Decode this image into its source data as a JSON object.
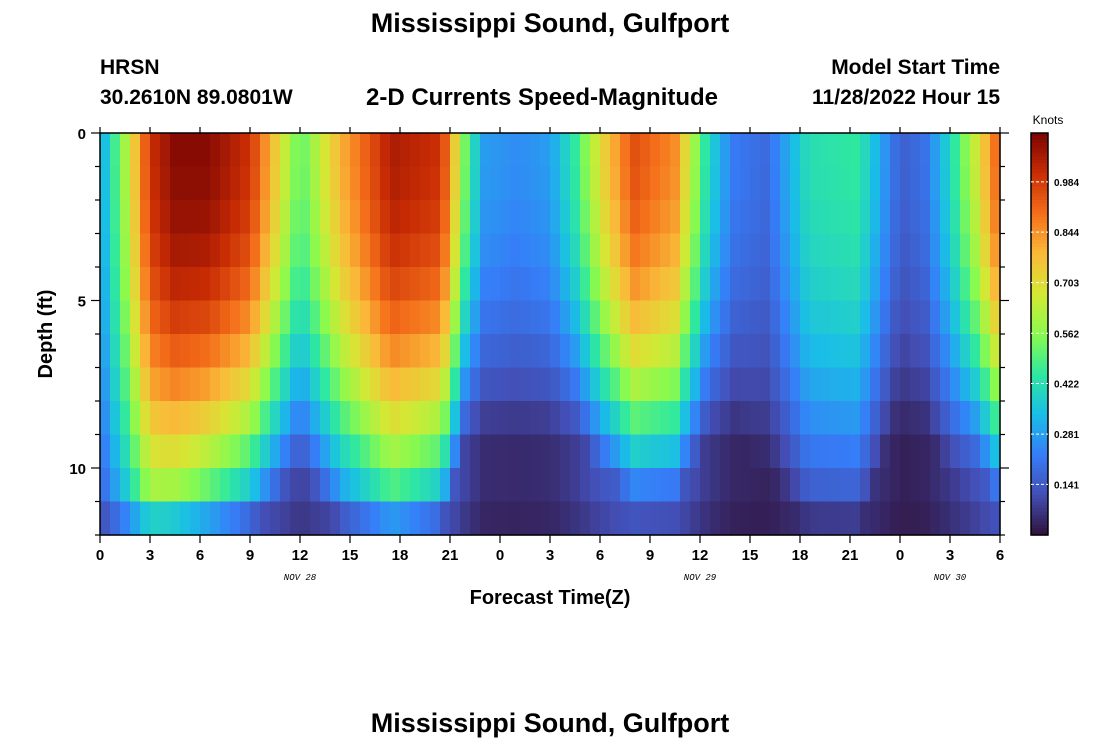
{
  "header": {
    "title": "Mississippi Sound, Gulfport",
    "station_id": "HRSN",
    "station_coords": "30.2610N  89.0801W",
    "plot_title": "2-D Currents Speed-Magnitude",
    "model_start_label": "Model Start Time",
    "model_start_value": "11/28/2022 Hour 15"
  },
  "footer": {
    "title": "Mississippi Sound, Gulfport"
  },
  "chart_data": {
    "type": "heatmap",
    "title": "2-D Currents Speed-Magnitude",
    "xlabel": "Forecast Time(Z)",
    "ylabel": "Depth (ft)",
    "colorbar_label": "Knots",
    "x_range_hours": [
      0,
      54
    ],
    "x_tick_labels": [
      "0",
      "3",
      "6",
      "9",
      "12",
      "15",
      "18",
      "21",
      "0",
      "3",
      "6",
      "9",
      "12",
      "15",
      "18",
      "21",
      "0",
      "3",
      "6"
    ],
    "date_labels": [
      {
        "text": "NOV 28",
        "hour": 12
      },
      {
        "text": "NOV 29",
        "hour": 36
      },
      {
        "text": "NOV 30",
        "hour": 51
      }
    ],
    "y_range": [
      0,
      12
    ],
    "y_ticks": [
      0,
      5,
      10
    ],
    "y_inverted": true,
    "colorbar_ticks": [
      0.141,
      0.281,
      0.422,
      0.562,
      0.703,
      0.844,
      0.984
    ],
    "colorbar_range": [
      0.0,
      1.12
    ],
    "depth_levels": [
      0,
      1,
      2,
      3,
      4,
      5,
      6,
      7,
      8,
      9,
      10,
      11,
      12
    ],
    "grid": false,
    "colormap": "turbo-like (dark blue to dark red)",
    "surface_speed_knots": [
      0.28,
      0.6,
      1.0,
      1.1,
      1.1,
      1.0,
      0.5,
      0.8,
      1.05,
      1.0,
      0.5,
      0.28,
      0.25,
      0.28,
      0.45,
      0.7,
      0.95,
      0.85,
      0.4,
      0.22,
      0.18,
      0.42,
      0.45,
      0.22,
      0.15,
      0.2,
      0.4,
      0.65,
      0.95
    ],
    "surface_time_hours": [
      0,
      1.5,
      3,
      4.5,
      6.5,
      9,
      12,
      14.5,
      17.5,
      20.5,
      22,
      23,
      25,
      27,
      28.5,
      30,
      32,
      34.5,
      36.5,
      38,
      40,
      42.5,
      45.5,
      47.5,
      48,
      49.5,
      51,
      52.5,
      54
    ],
    "max_depth_ft": [
      12,
      12,
      12,
      11,
      10,
      9,
      7,
      9,
      10,
      9,
      6,
      6,
      6,
      6,
      6,
      7,
      8,
      8,
      6,
      6,
      7,
      9,
      9,
      6,
      6,
      6,
      7,
      7,
      8
    ]
  }
}
